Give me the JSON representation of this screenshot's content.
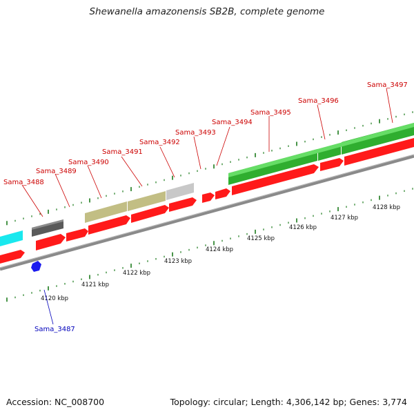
{
  "title": "Shewanella amazonensis SB2B, complete genome",
  "footer": {
    "accession": "Accession: NC_008700",
    "topology": "Topology: circular; Length: 4,306,142 bp; Genes: 3,774"
  },
  "colors": {
    "red": "#ff1a1a",
    "green": "#33bb33",
    "cyan": "#19e8ee",
    "dark_gray": "#5a5a5a",
    "olive": "#c2be84",
    "light_gray": "#c8c8c8",
    "blue": "#1a1aee",
    "tick_green": "#1a7a1a",
    "label_red": "#cc0000",
    "label_blue": "#0000bb"
  },
  "ruler_labels": [
    "4120 kbp",
    "4121 kbp",
    "4122 kbp",
    "4123 kbp",
    "4124 kbp",
    "4125 kbp",
    "4126 kbp",
    "4127 kbp",
    "4128 kbp"
  ],
  "gene_labels": [
    {
      "name": "Sama_3487",
      "strand": "minus"
    },
    {
      "name": "Sama_3488",
      "strand": "plus"
    },
    {
      "name": "Sama_3489",
      "strand": "plus"
    },
    {
      "name": "Sama_3490",
      "strand": "plus"
    },
    {
      "name": "Sama_3491",
      "strand": "plus"
    },
    {
      "name": "Sama_3492",
      "strand": "plus"
    },
    {
      "name": "Sama_3493",
      "strand": "plus"
    },
    {
      "name": "Sama_3494",
      "strand": "plus"
    },
    {
      "name": "Sama_3495",
      "strand": "plus"
    },
    {
      "name": "Sama_3496",
      "strand": "plus"
    },
    {
      "name": "Sama_3497",
      "strand": "plus"
    }
  ]
}
